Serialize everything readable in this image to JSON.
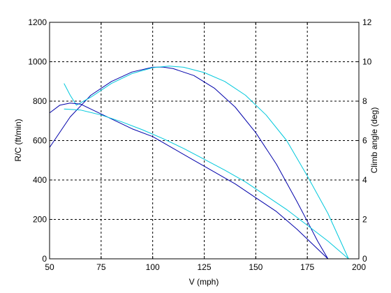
{
  "chart_data": {
    "type": "line",
    "xlabel": "V (mph)",
    "ylabel_left": "R/C (ft/min)",
    "ylabel_right": "Climb angle (deg)",
    "xlim": [
      50,
      200
    ],
    "ylim_left": [
      0,
      1200
    ],
    "ylim_right": [
      0,
      12
    ],
    "x_ticks": [
      "50",
      "75",
      "100",
      "125",
      "150",
      "175",
      "200"
    ],
    "y_ticks_left": [
      "0",
      "200",
      "400",
      "600",
      "800",
      "1000",
      "1200"
    ],
    "y_ticks_right": [
      "0",
      "2",
      "4",
      "6",
      "8",
      "10",
      "12"
    ],
    "grid": true,
    "series": [
      {
        "axis": "left",
        "color": "#0000aa",
        "x": [
          50,
          60,
          70,
          80,
          90,
          100,
          105,
          110,
          120,
          130,
          140,
          150,
          160,
          170,
          175,
          180,
          185
        ],
        "y": [
          565,
          720,
          830,
          900,
          948,
          972,
          973,
          965,
          930,
          865,
          770,
          640,
          480,
          290,
          190,
          90,
          0
        ]
      },
      {
        "axis": "left",
        "color": "#00c8dc",
        "x": [
          57,
          60,
          63,
          70,
          80,
          90,
          100,
          108,
          115,
          125,
          135,
          145,
          155,
          165,
          175,
          185,
          195
        ],
        "y": [
          890,
          830,
          780,
          820,
          890,
          940,
          970,
          978,
          972,
          945,
          900,
          830,
          730,
          600,
          420,
          230,
          0
        ]
      },
      {
        "axis": "right",
        "color": "#0000aa",
        "x": [
          50,
          55,
          60,
          65,
          70,
          80,
          90,
          100,
          110,
          120,
          130,
          140,
          150,
          160,
          170,
          180,
          185
        ],
        "y": [
          7.4,
          7.8,
          7.9,
          7.85,
          7.6,
          7.1,
          6.6,
          6.2,
          5.6,
          5.0,
          4.4,
          3.8,
          3.1,
          2.4,
          1.5,
          0.5,
          0
        ]
      },
      {
        "axis": "right",
        "color": "#00c8dc",
        "x": [
          57,
          65,
          75,
          85,
          95,
          105,
          115,
          125,
          135,
          145,
          155,
          165,
          175,
          185,
          195
        ],
        "y": [
          7.6,
          7.55,
          7.3,
          6.95,
          6.55,
          6.1,
          5.6,
          5.05,
          4.5,
          3.9,
          3.2,
          2.5,
          1.7,
          0.9,
          0
        ]
      }
    ]
  }
}
